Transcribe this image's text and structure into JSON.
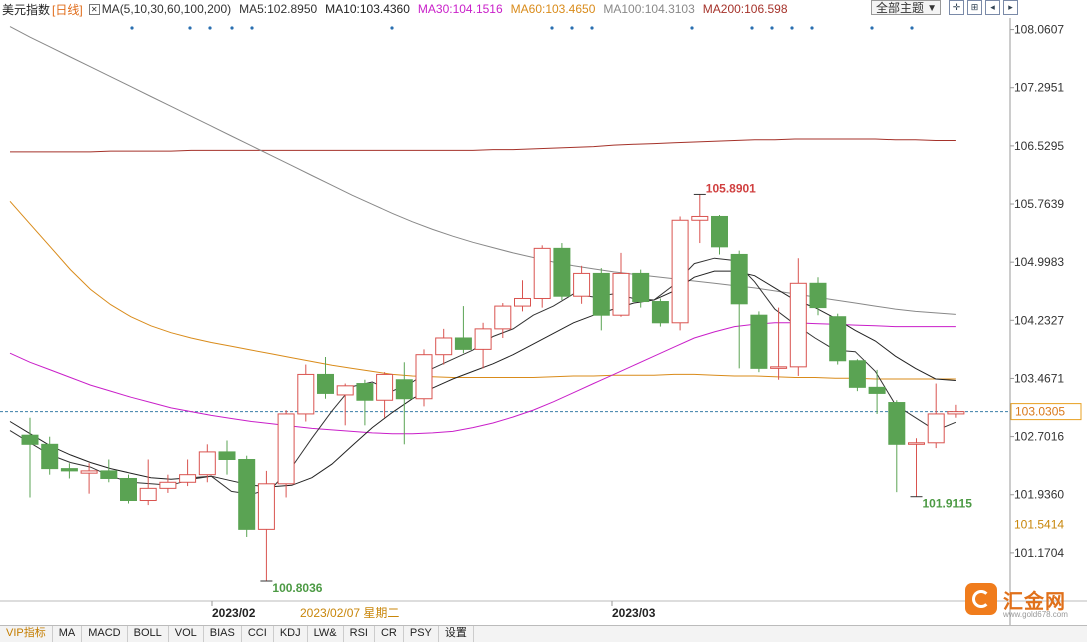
{
  "header": {
    "title": "美元指数",
    "period": "[日线]",
    "ma_label": "MA(5,10,30,60,100,200)",
    "ma5": "MA5:102.8950",
    "ma10": "MA10:103.4360",
    "ma30": "MA30:104.1516",
    "ma60": "MA60:103.4650",
    "ma100": "MA100:104.3103",
    "ma200": "MA200:106.598",
    "theme_label": "全部主题"
  },
  "colors": {
    "up": "#d9534f",
    "down": "#5aa353",
    "ma5": "#333333",
    "ma10": "#222222",
    "ma30": "#c91fc9",
    "ma60": "#d98b1a",
    "ma100": "#888888",
    "ma200": "#a5322a"
  },
  "price_axis": [
    "108.0607",
    "107.2951",
    "106.5295",
    "105.7639",
    "104.9983",
    "104.2327",
    "103.4671",
    "102.7016",
    "101.9360",
    "101.1704"
  ],
  "current_price": "103.0305",
  "extra_price": "101.5414",
  "dates": {
    "d1": "2023/02",
    "d2": "2023/03",
    "cursor": "2023/02/07 星期二"
  },
  "annotations": {
    "high": "105.8901",
    "low_left": "100.8036",
    "low_right": "101.9115"
  },
  "tabs": [
    "VIP指标",
    "MA",
    "MACD",
    "BOLL",
    "VOL",
    "BIAS",
    "CCI",
    "KDJ",
    "LW&",
    "RSI",
    "CR",
    "PSY",
    "设置"
  ],
  "logo": {
    "brand": "汇金网",
    "url": "www.gold678.com"
  },
  "chart_data": {
    "type": "candlestick",
    "ylim": [
      100.55,
      108.2
    ],
    "candles": [
      {
        "o": 102.72,
        "c": 102.6,
        "h": 102.95,
        "l": 101.9
      },
      {
        "o": 102.6,
        "c": 102.28,
        "h": 102.7,
        "l": 102.2
      },
      {
        "o": 102.28,
        "c": 102.25,
        "h": 102.35,
        "l": 102.15
      },
      {
        "o": 102.22,
        "c": 102.25,
        "h": 102.35,
        "l": 101.95
      },
      {
        "o": 102.25,
        "c": 102.15,
        "h": 102.4,
        "l": 102.1
      },
      {
        "o": 102.15,
        "c": 101.86,
        "h": 102.2,
        "l": 101.82
      },
      {
        "o": 101.86,
        "c": 102.02,
        "h": 102.4,
        "l": 101.8
      },
      {
        "o": 102.02,
        "c": 102.1,
        "h": 102.2,
        "l": 101.96
      },
      {
        "o": 102.1,
        "c": 102.2,
        "h": 102.4,
        "l": 102.05
      },
      {
        "o": 102.2,
        "c": 102.5,
        "h": 102.6,
        "l": 102.1
      },
      {
        "o": 102.5,
        "c": 102.4,
        "h": 102.65,
        "l": 102.2
      },
      {
        "o": 102.4,
        "c": 101.48,
        "h": 102.45,
        "l": 101.38
      },
      {
        "o": 101.48,
        "c": 102.08,
        "h": 102.25,
        "l": 100.8
      },
      {
        "o": 102.08,
        "c": 103.0,
        "h": 103.05,
        "l": 101.9
      },
      {
        "o": 103.0,
        "c": 103.52,
        "h": 103.65,
        "l": 102.9
      },
      {
        "o": 103.52,
        "c": 103.27,
        "h": 103.75,
        "l": 103.2
      },
      {
        "o": 103.25,
        "c": 103.37,
        "h": 103.4,
        "l": 102.85
      },
      {
        "o": 103.4,
        "c": 103.18,
        "h": 103.45,
        "l": 102.85
      },
      {
        "o": 103.18,
        "c": 103.52,
        "h": 103.55,
        "l": 102.95
      },
      {
        "o": 103.45,
        "c": 103.2,
        "h": 103.68,
        "l": 102.6
      },
      {
        "o": 103.2,
        "c": 103.78,
        "h": 103.85,
        "l": 103.1
      },
      {
        "o": 103.78,
        "c": 104.0,
        "h": 104.12,
        "l": 103.65
      },
      {
        "o": 104.0,
        "c": 103.85,
        "h": 104.42,
        "l": 103.8
      },
      {
        "o": 103.85,
        "c": 104.12,
        "h": 104.2,
        "l": 103.6
      },
      {
        "o": 104.12,
        "c": 104.42,
        "h": 104.46,
        "l": 104.0
      },
      {
        "o": 104.42,
        "c": 104.52,
        "h": 104.76,
        "l": 104.35
      },
      {
        "o": 104.52,
        "c": 105.18,
        "h": 105.22,
        "l": 104.4
      },
      {
        "o": 105.18,
        "c": 104.55,
        "h": 105.25,
        "l": 104.5
      },
      {
        "o": 104.55,
        "c": 104.85,
        "h": 104.95,
        "l": 104.45
      },
      {
        "o": 104.85,
        "c": 104.3,
        "h": 104.92,
        "l": 104.1
      },
      {
        "o": 104.3,
        "c": 104.85,
        "h": 105.12,
        "l": 104.28
      },
      {
        "o": 104.85,
        "c": 104.48,
        "h": 104.9,
        "l": 104.4
      },
      {
        "o": 104.48,
        "c": 104.2,
        "h": 104.52,
        "l": 104.15
      },
      {
        "o": 104.2,
        "c": 105.55,
        "h": 105.6,
        "l": 104.1
      },
      {
        "o": 105.55,
        "c": 105.6,
        "h": 105.89,
        "l": 105.25
      },
      {
        "o": 105.6,
        "c": 105.2,
        "h": 105.62,
        "l": 105.1
      },
      {
        "o": 105.1,
        "c": 104.45,
        "h": 105.15,
        "l": 103.6
      },
      {
        "o": 104.3,
        "c": 103.6,
        "h": 104.35,
        "l": 103.55
      },
      {
        "o": 103.6,
        "c": 103.62,
        "h": 104.4,
        "l": 103.45
      },
      {
        "o": 103.62,
        "c": 104.72,
        "h": 105.05,
        "l": 103.5
      },
      {
        "o": 104.72,
        "c": 104.4,
        "h": 104.8,
        "l": 104.3
      },
      {
        "o": 104.28,
        "c": 103.7,
        "h": 104.32,
        "l": 103.65
      },
      {
        "o": 103.7,
        "c": 103.35,
        "h": 103.72,
        "l": 103.3
      },
      {
        "o": 103.35,
        "c": 103.27,
        "h": 103.58,
        "l": 103.0
      },
      {
        "o": 103.15,
        "c": 102.6,
        "h": 103.18,
        "l": 101.97
      },
      {
        "o": 102.6,
        "c": 102.62,
        "h": 102.68,
        "l": 101.91
      },
      {
        "o": 102.62,
        "c": 103.0,
        "h": 103.4,
        "l": 102.55
      },
      {
        "o": 103.0,
        "c": 103.03,
        "h": 103.12,
        "l": 102.95
      }
    ],
    "ma5": [
      102.78,
      102.62,
      102.46,
      102.36,
      102.3,
      102.18,
      102.1,
      102.08,
      102.06,
      102.14,
      102.18,
      101.98,
      101.94,
      102.02,
      102.3,
      102.68,
      103.04,
      103.36,
      103.42,
      103.3,
      103.42,
      103.6,
      103.72,
      103.84,
      104.02,
      104.12,
      104.3,
      104.42,
      104.58,
      104.54,
      104.58,
      104.52,
      104.5,
      104.7,
      104.98,
      105.05,
      105.02,
      104.74,
      104.38,
      104.18,
      104.0,
      103.84,
      103.82,
      103.56,
      103.12,
      102.95,
      102.78,
      102.89
    ],
    "ma10": [
      102.9,
      102.74,
      102.58,
      102.46,
      102.36,
      102.28,
      102.22,
      102.16,
      102.14,
      102.16,
      102.18,
      102.12,
      102.06,
      102.04,
      102.06,
      102.16,
      102.34,
      102.58,
      102.82,
      103.02,
      103.2,
      103.34,
      103.46,
      103.56,
      103.66,
      103.78,
      103.92,
      104.06,
      104.2,
      104.3,
      104.38,
      104.46,
      104.5,
      104.62,
      104.8,
      104.88,
      104.88,
      104.82,
      104.66,
      104.5,
      104.4,
      104.26,
      104.1,
      103.96,
      103.76,
      103.6,
      103.46,
      103.44
    ],
    "ma30": [
      103.8,
      103.68,
      103.58,
      103.48,
      103.38,
      103.3,
      103.22,
      103.15,
      103.08,
      103.03,
      102.98,
      102.94,
      102.9,
      102.87,
      102.84,
      102.81,
      102.79,
      102.77,
      102.75,
      102.74,
      102.74,
      102.75,
      102.77,
      102.82,
      102.88,
      102.96,
      103.05,
      103.16,
      103.28,
      103.4,
      103.52,
      103.64,
      103.76,
      103.88,
      104.0,
      104.08,
      104.15,
      104.18,
      104.2,
      104.2,
      104.19,
      104.18,
      104.17,
      104.16,
      104.15,
      104.15,
      104.15,
      104.15
    ],
    "ma60": [
      105.8,
      105.5,
      105.2,
      104.9,
      104.64,
      104.44,
      104.28,
      104.16,
      104.07,
      104.0,
      103.94,
      103.89,
      103.84,
      103.79,
      103.74,
      103.69,
      103.64,
      103.6,
      103.56,
      103.52,
      103.5,
      103.49,
      103.48,
      103.48,
      103.48,
      103.48,
      103.48,
      103.49,
      103.5,
      103.5,
      103.51,
      103.51,
      103.51,
      103.52,
      103.52,
      103.51,
      103.5,
      103.5,
      103.49,
      103.48,
      103.48,
      103.47,
      103.47,
      103.46,
      103.46,
      103.46,
      103.46,
      103.46
    ],
    "ma100": [
      108.1,
      107.96,
      107.83,
      107.7,
      107.57,
      107.44,
      107.31,
      107.18,
      107.05,
      106.92,
      106.79,
      106.66,
      106.53,
      106.4,
      106.27,
      106.14,
      106.01,
      105.88,
      105.76,
      105.64,
      105.53,
      105.43,
      105.34,
      105.26,
      105.19,
      105.12,
      105.06,
      105.0,
      104.95,
      104.91,
      104.87,
      104.84,
      104.81,
      104.78,
      104.75,
      104.72,
      104.69,
      104.66,
      104.62,
      104.58,
      104.54,
      104.5,
      104.46,
      104.42,
      104.38,
      104.35,
      104.33,
      104.31
    ],
    "ma200": [
      106.45,
      106.45,
      106.45,
      106.45,
      106.45,
      106.46,
      106.46,
      106.46,
      106.46,
      106.47,
      106.47,
      106.47,
      106.47,
      106.47,
      106.47,
      106.47,
      106.47,
      106.47,
      106.47,
      106.47,
      106.47,
      106.47,
      106.47,
      106.47,
      106.48,
      106.48,
      106.49,
      106.5,
      106.51,
      106.52,
      106.54,
      106.55,
      106.56,
      106.57,
      106.58,
      106.59,
      106.6,
      106.61,
      106.61,
      106.62,
      106.62,
      106.62,
      106.62,
      106.62,
      106.61,
      106.61,
      106.6,
      106.6
    ]
  }
}
